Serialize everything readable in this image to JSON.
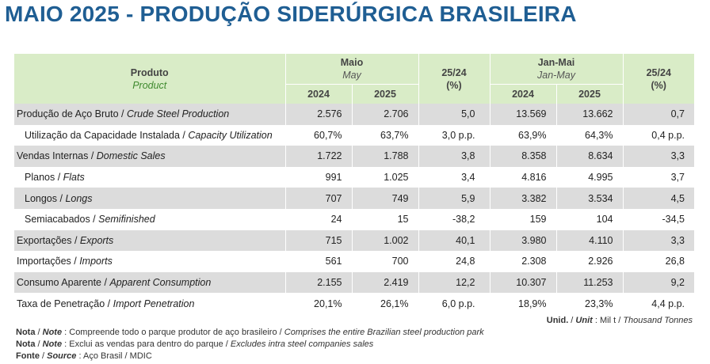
{
  "title": "MAIO 2025 - PRODUÇÃO SIDERÚRGICA BRASILEIRA",
  "header": {
    "produto": "Produto",
    "product": "Product",
    "maio": "Maio",
    "may": "May",
    "var1": "25/24",
    "var1_unit": "(%)",
    "janmai": "Jan-Mai",
    "janmay": "Jan-May",
    "var2": "25/24",
    "var2_unit": "(%)",
    "y2024a": "2024",
    "y2025a": "2025",
    "y2024b": "2024",
    "y2025b": "2025"
  },
  "rows": [
    {
      "pt": "Produção de Aço Bruto / ",
      "en": "Crude Steel Production",
      "m24": "2.576",
      "m25": "2.706",
      "v1": "5,0",
      "j24": "13.569",
      "j25": "13.662",
      "v2": "0,7"
    },
    {
      "pt": "Utilização da Capacidade Instalada / ",
      "en": "Capacity Utilization",
      "m24": "60,7%",
      "m25": "63,7%",
      "v1": "3,0 p.p.",
      "j24": "63,9%",
      "j25": "64,3%",
      "v2": "0,4 p.p."
    },
    {
      "pt": "Vendas Internas / ",
      "en": "Domestic Sales",
      "m24": "1.722",
      "m25": "1.788",
      "v1": "3,8",
      "j24": "8.358",
      "j25": "8.634",
      "v2": "3,3"
    },
    {
      "pt": "Planos / ",
      "en": "Flats",
      "m24": "991",
      "m25": "1.025",
      "v1": "3,4",
      "j24": "4.816",
      "j25": "4.995",
      "v2": "3,7"
    },
    {
      "pt": "Longos / ",
      "en": "Longs",
      "m24": "707",
      "m25": "749",
      "v1": "5,9",
      "j24": "3.382",
      "j25": "3.534",
      "v2": "4,5"
    },
    {
      "pt": "Semiacabados / ",
      "en": "Semifinished",
      "m24": "24",
      "m25": "15",
      "v1": "-38,2",
      "j24": "159",
      "j25": "104",
      "v2": "-34,5"
    },
    {
      "pt": "Exportações / ",
      "en": "Exports",
      "m24": "715",
      "m25": "1.002",
      "v1": "40,1",
      "j24": "3.980",
      "j25": "4.110",
      "v2": "3,3"
    },
    {
      "pt": "Importações / ",
      "en": "Imports",
      "m24": "561",
      "m25": "700",
      "v1": "24,8",
      "j24": "2.308",
      "j25": "2.926",
      "v2": "26,8"
    },
    {
      "pt": "Consumo Aparente / ",
      "en": "Apparent Consumption",
      "m24": "2.155",
      "m25": "2.419",
      "v1": "12,2",
      "j24": "10.307",
      "j25": "11.253",
      "v2": "9,2"
    },
    {
      "pt": "Taxa de Penetração / ",
      "en": "Import Penetration",
      "m24": "20,1%",
      "m25": "26,1%",
      "v1": "6,0 p.p.",
      "j24": "18,9%",
      "j25": "23,3%",
      "v2": "4,4 p.p."
    }
  ],
  "unit": {
    "label_pt": "Unid.",
    "label_en": "Unit",
    "value_pt": "Mil t",
    "value_en": "Thousand Tonnes"
  },
  "notes": [
    {
      "label_pt": "Nota",
      "label_en": "Note",
      "text_pt": "Compreende todo o parque produtor de aço brasileiro / ",
      "text_en": "Comprises the entire Brazilian steel production park"
    },
    {
      "label_pt": "Nota",
      "label_en": "Note",
      "text_pt": "Exclui as vendas para dentro do parque / ",
      "text_en": "Excludes intra steel companies sales"
    },
    {
      "label_pt": "Fonte",
      "label_en": "Source",
      "text_pt": "Aço Brasil / MDIC",
      "text_en": ""
    }
  ]
}
